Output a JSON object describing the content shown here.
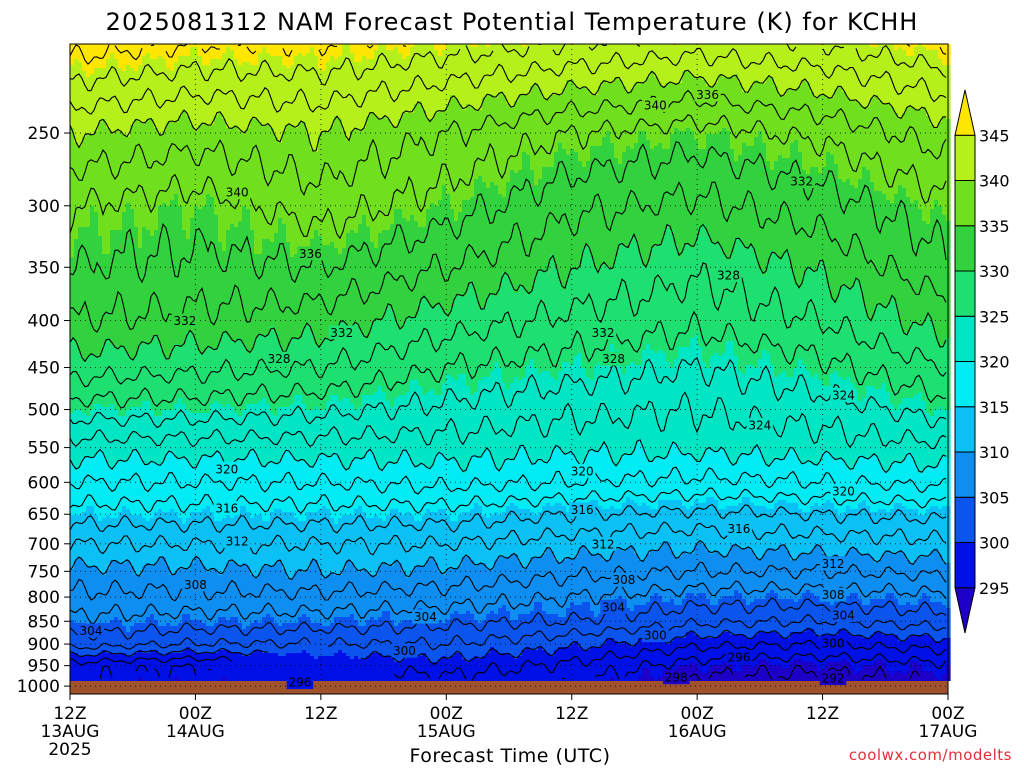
{
  "chart_data": {
    "type": "contour",
    "title": "2025081312 NAM Forecast Potential Temperature (K) for KCHH",
    "xlabel": "Forecast Time (UTC)",
    "ylabel": "",
    "y_axis": "pressure (hPa), log scale, inverted",
    "ylim": [
      1020,
      200
    ],
    "xlim": [
      0,
      84
    ],
    "x_ticks": [
      {
        "hour": 0,
        "lines": [
          "12Z",
          "13AUG",
          "2025"
        ]
      },
      {
        "hour": 12,
        "lines": [
          "00Z",
          "14AUG"
        ]
      },
      {
        "hour": 24,
        "lines": [
          "12Z"
        ]
      },
      {
        "hour": 36,
        "lines": [
          "00Z",
          "15AUG"
        ]
      },
      {
        "hour": 48,
        "lines": [
          "12Z"
        ]
      },
      {
        "hour": 60,
        "lines": [
          "00Z",
          "16AUG"
        ]
      },
      {
        "hour": 72,
        "lines": [
          "12Z"
        ]
      },
      {
        "hour": 84,
        "lines": [
          "00Z",
          "17AUG"
        ]
      }
    ],
    "y_ticks": [
      250,
      300,
      350,
      400,
      450,
      500,
      550,
      600,
      650,
      700,
      750,
      800,
      850,
      900,
      950,
      1000
    ],
    "colorbar": {
      "levels": [
        295,
        300,
        305,
        310,
        315,
        320,
        325,
        330,
        335,
        340,
        345
      ],
      "colors": [
        "#1d00c8",
        "#0010e6",
        "#0b55ee",
        "#0e8ef0",
        "#0bc0f4",
        "#00ecf4",
        "#00e6c4",
        "#1ee070",
        "#32d23e",
        "#70e01e",
        "#b6f01a",
        "#ffe600"
      ]
    },
    "pressure_levels": [
      1000,
      950,
      900,
      850,
      800,
      750,
      700,
      650,
      600,
      550,
      500,
      450,
      400,
      350,
      300,
      250,
      200
    ],
    "theta_profiles": [
      {
        "hour": 0,
        "theta": [
          296,
          297,
          303,
          305.5,
          307.5,
          309.5,
          312,
          315,
          318,
          321,
          325,
          329,
          332,
          334,
          336,
          340,
          347
        ]
      },
      {
        "hour": 12,
        "theta": [
          295,
          296,
          302,
          305,
          307.5,
          309.5,
          312,
          315,
          318,
          321,
          325,
          328.5,
          331.5,
          333.5,
          335,
          339,
          346
        ]
      },
      {
        "hour": 24,
        "theta": [
          296,
          298,
          302,
          305,
          307.5,
          310,
          312,
          315,
          318,
          321,
          324.5,
          328,
          331,
          334,
          337,
          340,
          346
        ]
      },
      {
        "hour": 36,
        "theta": [
          297,
          299,
          302,
          304.5,
          307,
          309.5,
          312,
          315,
          318.5,
          321,
          323.5,
          326,
          329,
          332,
          335,
          338,
          345
        ]
      },
      {
        "hour": 48,
        "theta": [
          296,
          297.5,
          300.5,
          304,
          306,
          308.5,
          311,
          314,
          318,
          320.5,
          322.5,
          325,
          327.5,
          330,
          332.5,
          336,
          344
        ]
      },
      {
        "hour": 60,
        "theta": [
          293,
          295,
          298.5,
          302.5,
          305,
          308,
          310.5,
          313.5,
          317.5,
          320.5,
          322,
          324,
          326.5,
          328.5,
          331.5,
          335,
          343
        ]
      },
      {
        "hour": 72,
        "theta": [
          293,
          294.5,
          298,
          302,
          305,
          308,
          311,
          314,
          318,
          321,
          323,
          325.5,
          328,
          330.5,
          333,
          336.5,
          344
        ]
      },
      {
        "hour": 84,
        "theta": [
          294,
          295.5,
          299,
          303,
          305.5,
          308.5,
          311.5,
          314.5,
          318.5,
          321.5,
          325,
          328,
          331,
          333.5,
          335.5,
          339,
          346
        ]
      }
    ],
    "contour_labels": [
      {
        "value": "340",
        "hour": 16,
        "p": 290
      },
      {
        "value": "336",
        "hour": 23,
        "p": 338
      },
      {
        "value": "332",
        "hour": 11,
        "p": 400
      },
      {
        "value": "332",
        "hour": 26,
        "p": 412
      },
      {
        "value": "328",
        "hour": 20,
        "p": 440
      },
      {
        "value": "320",
        "hour": 15,
        "p": 580
      },
      {
        "value": "316",
        "hour": 15,
        "p": 640
      },
      {
        "value": "312",
        "hour": 16,
        "p": 695
      },
      {
        "value": "308",
        "hour": 12,
        "p": 775
      },
      {
        "value": "304",
        "hour": 2,
        "p": 870
      },
      {
        "value": "304",
        "hour": 34,
        "p": 840
      },
      {
        "value": "300",
        "hour": 32,
        "p": 915
      },
      {
        "value": "296",
        "hour": 22,
        "p": 990
      },
      {
        "value": "340",
        "hour": 56,
        "p": 233
      },
      {
        "value": "336",
        "hour": 61,
        "p": 227
      },
      {
        "value": "332",
        "hour": 70,
        "p": 282
      },
      {
        "value": "328",
        "hour": 63,
        "p": 357
      },
      {
        "value": "332",
        "hour": 51,
        "p": 412
      },
      {
        "value": "328",
        "hour": 52,
        "p": 440
      },
      {
        "value": "324",
        "hour": 66,
        "p": 520
      },
      {
        "value": "324",
        "hour": 74,
        "p": 482
      },
      {
        "value": "320",
        "hour": 49,
        "p": 583
      },
      {
        "value": "320",
        "hour": 74,
        "p": 613
      },
      {
        "value": "316",
        "hour": 49,
        "p": 642
      },
      {
        "value": "316",
        "hour": 64,
        "p": 674
      },
      {
        "value": "312",
        "hour": 51,
        "p": 700
      },
      {
        "value": "312",
        "hour": 73,
        "p": 735
      },
      {
        "value": "308",
        "hour": 53,
        "p": 766
      },
      {
        "value": "308",
        "hour": 73,
        "p": 795
      },
      {
        "value": "304",
        "hour": 52,
        "p": 820
      },
      {
        "value": "304",
        "hour": 74,
        "p": 837
      },
      {
        "value": "300",
        "hour": 56,
        "p": 880
      },
      {
        "value": "300",
        "hour": 73,
        "p": 898
      },
      {
        "value": "296",
        "hour": 64,
        "p": 930
      },
      {
        "value": "298",
        "hour": 58,
        "p": 978
      },
      {
        "value": "292",
        "hour": 73,
        "p": 980
      }
    ],
    "grid": true
  },
  "credit": "coolwx.com/modelts"
}
